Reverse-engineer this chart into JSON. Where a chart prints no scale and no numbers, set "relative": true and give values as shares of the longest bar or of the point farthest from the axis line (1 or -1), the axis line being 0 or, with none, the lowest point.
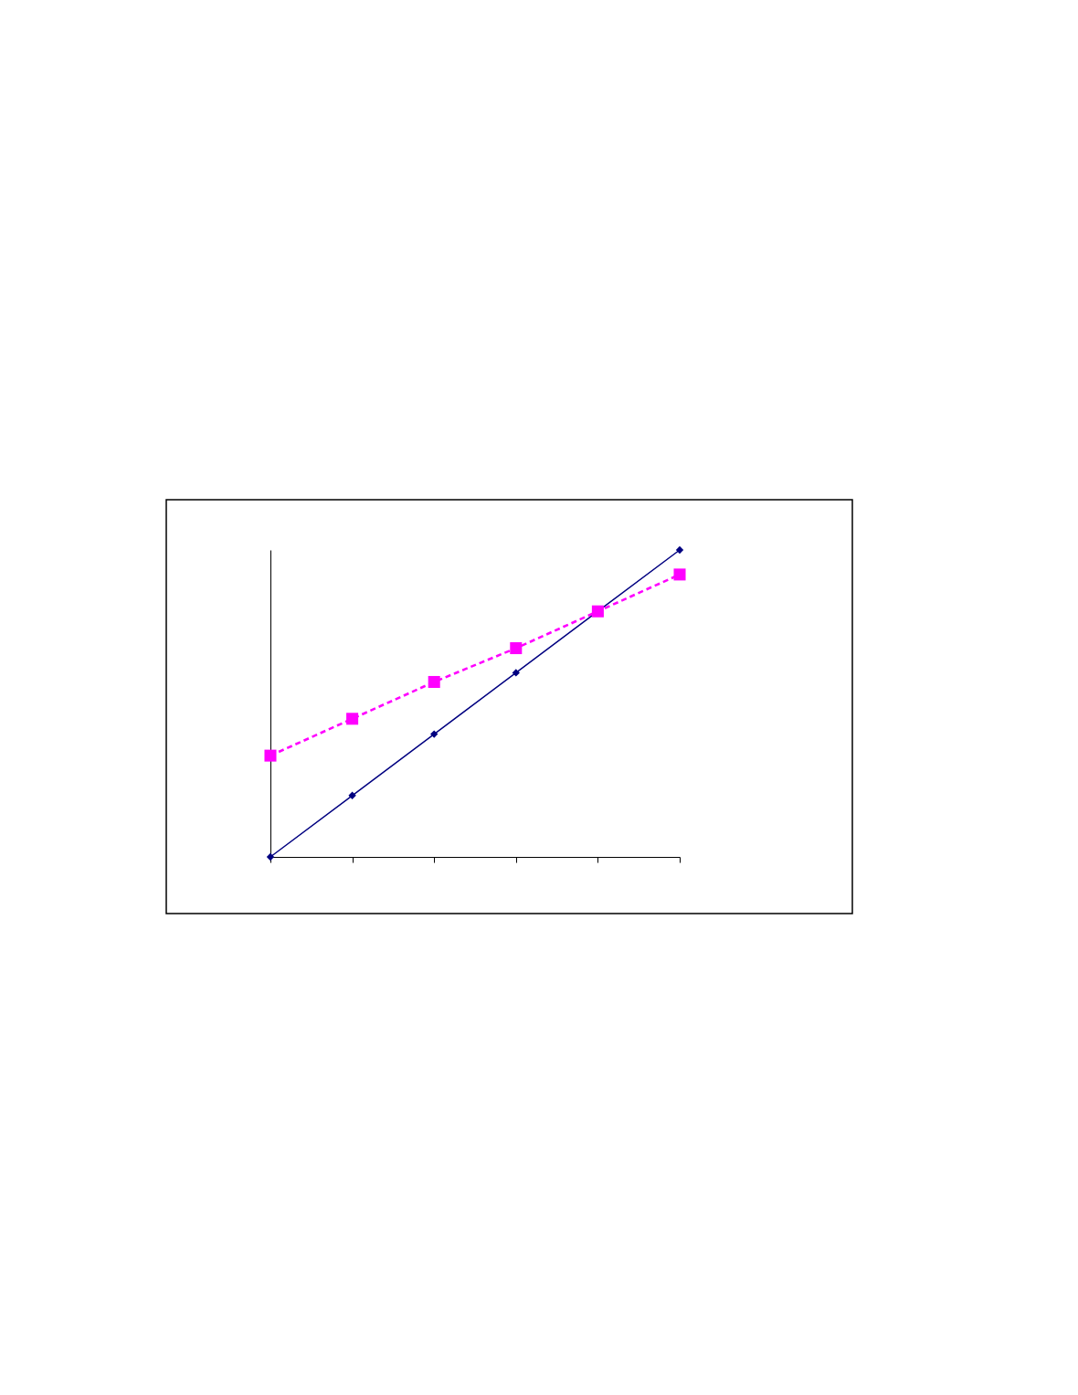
{
  "chart_data": {
    "type": "line",
    "relative": true,
    "categories": [
      null,
      null,
      null,
      null,
      null,
      null
    ],
    "series": [
      {
        "color": "#000080",
        "values": [
          0,
          0.2,
          0.4,
          0.6,
          0.8,
          1
        ],
        "marker": "diamond",
        "line_style": "solid"
      },
      {
        "color": "#ff00ff",
        "values": [
          0.33,
          0.45,
          0.57,
          0.68,
          0.8,
          0.92
        ],
        "marker": "square",
        "line_style": "dashed"
      }
    ]
  }
}
